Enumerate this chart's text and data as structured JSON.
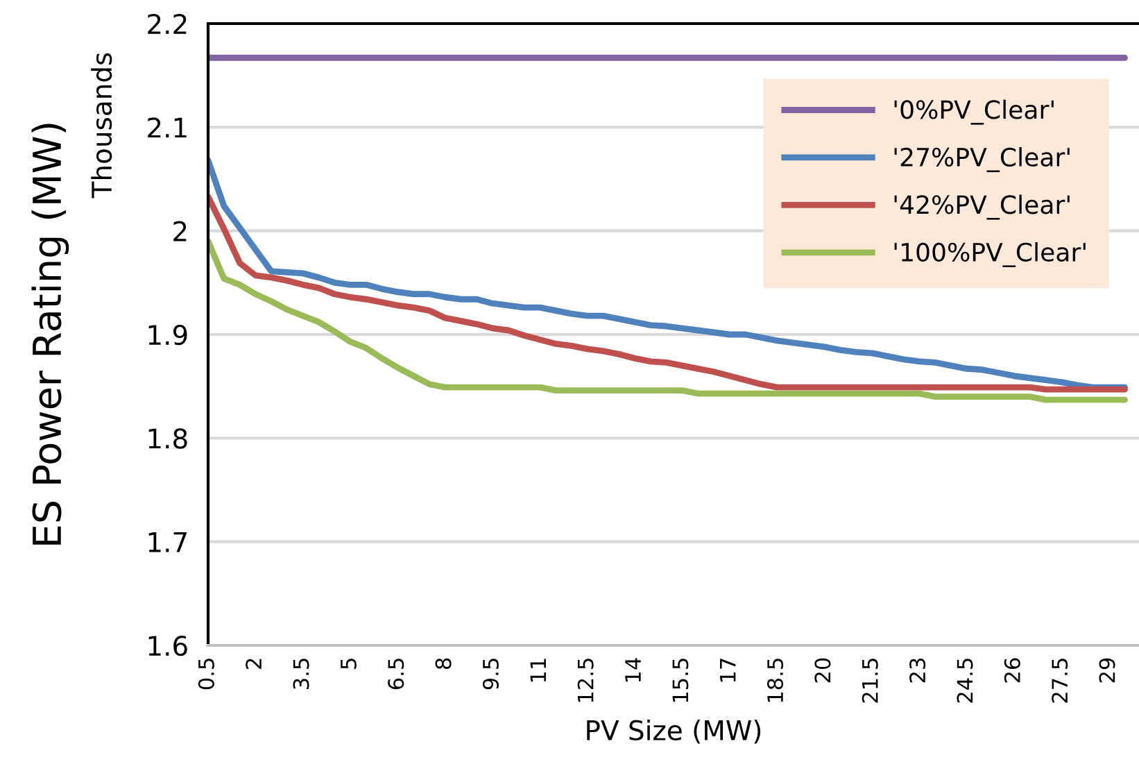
{
  "chart_data": {
    "type": "line",
    "ylabel": "ES Power Rating (MW)",
    "xlabel": "PV Size (MW)",
    "annotations": [
      "Thousands"
    ],
    "categories": [
      "0.5",
      null,
      null,
      "2",
      null,
      null,
      "3.5",
      null,
      null,
      "5",
      null,
      null,
      "6.5",
      null,
      null,
      "8",
      null,
      null,
      "9.5",
      null,
      null,
      "11",
      null,
      null,
      "12.5",
      null,
      null,
      "14",
      null,
      null,
      "15.5",
      null,
      null,
      "17",
      null,
      null,
      "18.5",
      null,
      null,
      "20",
      null,
      null,
      "21.5",
      null,
      null,
      "23",
      null,
      null,
      "24.5",
      null,
      null,
      "26",
      null,
      null,
      "27.5",
      null,
      null,
      "29",
      null
    ],
    "ylim": [
      1.6,
      2.2
    ],
    "yticks": [
      1.6,
      1.7,
      1.8,
      1.9,
      {
        "value": 2.0,
        "label": "2"
      },
      2.1,
      2.2
    ],
    "grid": "y",
    "legend": "top right",
    "marker": "none",
    "line_style": "solid",
    "series": [
      {
        "name": "'0%PV_Clear'",
        "color": "#8064a2",
        "values": [
          2.167,
          2.167,
          2.167,
          2.167,
          2.167,
          2.167,
          2.167,
          2.167,
          2.167,
          2.167,
          2.167,
          2.167,
          2.167,
          2.167,
          2.167,
          2.167,
          2.167,
          2.167,
          2.167,
          2.167,
          2.167,
          2.167,
          2.167,
          2.167,
          2.167,
          2.167,
          2.167,
          2.167,
          2.167,
          2.167,
          2.167,
          2.167,
          2.167,
          2.167,
          2.167,
          2.167,
          2.167,
          2.167,
          2.167,
          2.167,
          2.167,
          2.167,
          2.167,
          2.167,
          2.167,
          2.167,
          2.167,
          2.167,
          2.167,
          2.167,
          2.167,
          2.167,
          2.167,
          2.167,
          2.167,
          2.167,
          2.167,
          2.167,
          2.167
        ]
      },
      {
        "name": "'27%PV_Clear'",
        "color": "#4f81bd",
        "values": [
          2.068,
          2.024,
          2.003,
          1.982,
          1.961,
          1.96,
          1.959,
          1.955,
          1.95,
          1.948,
          1.948,
          1.944,
          1.941,
          1.939,
          1.939,
          1.936,
          1.934,
          1.934,
          1.93,
          1.928,
          1.926,
          1.926,
          1.923,
          1.92,
          1.918,
          1.918,
          1.915,
          1.912,
          1.909,
          1.908,
          1.906,
          1.904,
          1.902,
          1.9,
          1.9,
          1.897,
          1.894,
          1.892,
          1.89,
          1.888,
          1.885,
          1.883,
          1.882,
          1.879,
          1.876,
          1.874,
          1.873,
          1.87,
          1.867,
          1.866,
          1.863,
          1.86,
          1.858,
          1.856,
          1.854,
          1.851,
          1.849,
          1.849,
          1.849
        ]
      },
      {
        "name": "'42%PV_Clear'",
        "color": "#c0504d",
        "values": [
          2.033,
          2.002,
          1.969,
          1.957,
          1.955,
          1.952,
          1.948,
          1.945,
          1.939,
          1.936,
          1.934,
          1.931,
          1.928,
          1.926,
          1.923,
          1.916,
          1.913,
          1.91,
          1.906,
          1.904,
          1.899,
          1.895,
          1.891,
          1.889,
          1.886,
          1.884,
          1.881,
          1.877,
          1.874,
          1.873,
          1.87,
          1.867,
          1.864,
          1.86,
          1.856,
          1.852,
          1.849,
          1.849,
          1.849,
          1.849,
          1.849,
          1.849,
          1.849,
          1.849,
          1.849,
          1.849,
          1.849,
          1.849,
          1.849,
          1.849,
          1.849,
          1.849,
          1.849,
          1.847,
          1.847,
          1.847,
          1.847,
          1.847,
          1.847
        ]
      },
      {
        "name": "'100%PV_Clear'",
        "color": "#9bbb59",
        "values": [
          1.99,
          1.954,
          1.948,
          1.939,
          1.932,
          1.924,
          1.918,
          1.912,
          1.903,
          1.893,
          1.887,
          1.877,
          1.868,
          1.86,
          1.852,
          1.849,
          1.849,
          1.849,
          1.849,
          1.849,
          1.849,
          1.849,
          1.846,
          1.846,
          1.846,
          1.846,
          1.846,
          1.846,
          1.846,
          1.846,
          1.846,
          1.843,
          1.843,
          1.843,
          1.843,
          1.843,
          1.843,
          1.843,
          1.843,
          1.843,
          1.843,
          1.843,
          1.843,
          1.843,
          1.843,
          1.843,
          1.84,
          1.84,
          1.84,
          1.84,
          1.84,
          1.84,
          1.84,
          1.837,
          1.837,
          1.837,
          1.837,
          1.837,
          1.837
        ]
      }
    ]
  }
}
